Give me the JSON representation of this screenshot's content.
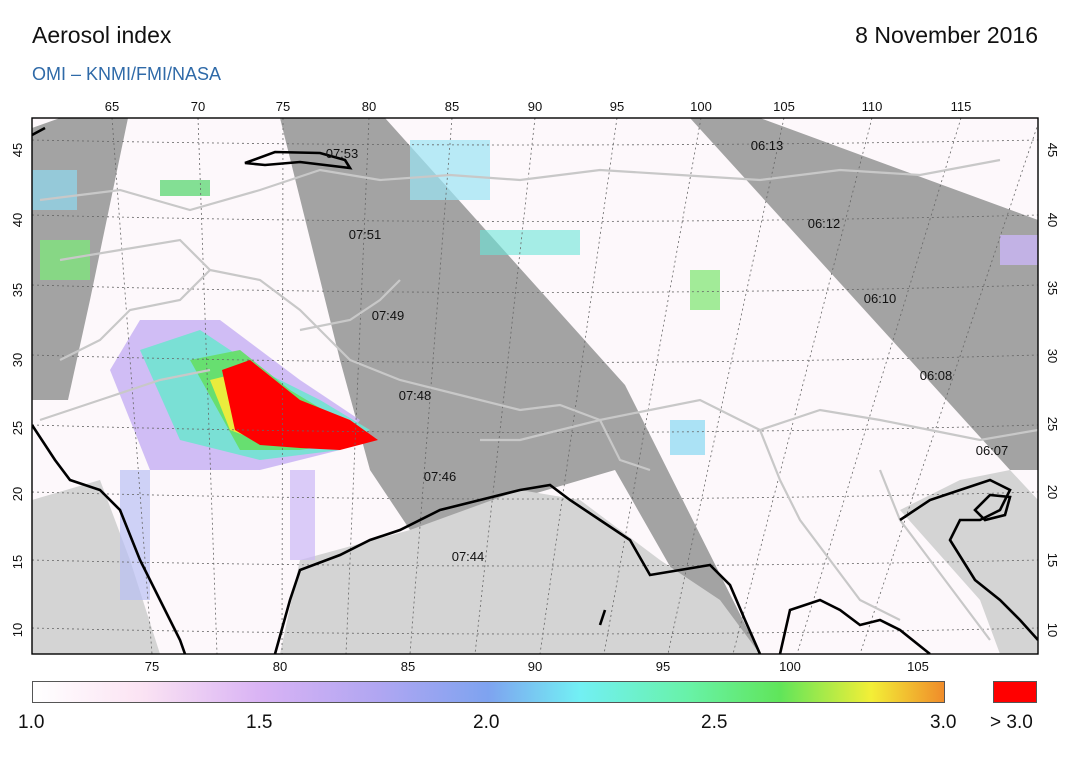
{
  "header": {
    "title": "Aerosol index",
    "date": "8 November 2016",
    "subtitle": "OMI  –  KNMI/FMI/NASA"
  },
  "map": {
    "top_lon_ticks": [
      "65",
      "70",
      "75",
      "80",
      "85",
      "90",
      "95",
      "100",
      "105",
      "110",
      "115"
    ],
    "bottom_lon_ticks": [
      "75",
      "80",
      "85",
      "90",
      "95",
      "100",
      "105"
    ],
    "lat_ticks": [
      "45",
      "40",
      "35",
      "30",
      "25",
      "20",
      "15",
      "10"
    ],
    "orbit_times": [
      "07:53",
      "07:51",
      "07:49",
      "07:48",
      "07:46",
      "07:44",
      "06:13",
      "06:12",
      "06:10",
      "06:08",
      "06:07"
    ],
    "colors": {
      "gap": "#a3a3a3",
      "land_outside": "#d4d4d4",
      "coast": "#000000",
      "border": "#c8c8c8",
      "grid": "#666666"
    }
  },
  "colorbar": {
    "labels": [
      "1.0",
      "1.5",
      "2.0",
      "2.5",
      "3.0"
    ],
    "over_label": "> 3.0",
    "over_color": "#ff0000"
  }
}
